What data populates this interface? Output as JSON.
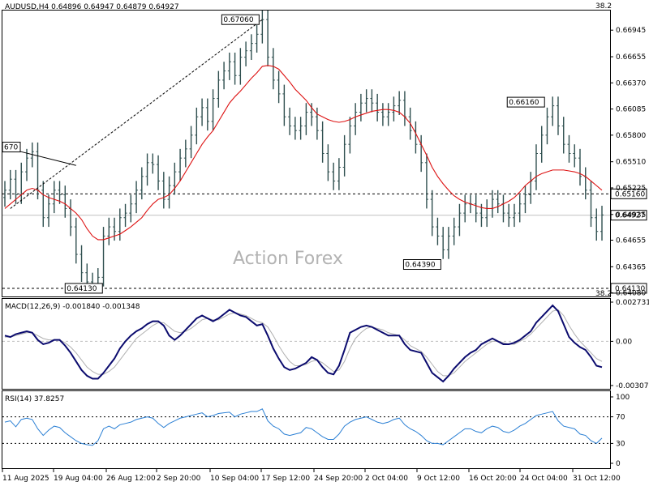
{
  "chart_data": [
    {
      "type": "candlestick",
      "symbol_header": "AUDUSD,H4  0.64896 0.64947 0.64879 0.64927",
      "watermark": "Action Forex",
      "y_ticks": [
        "0.66945",
        "0.66655",
        "0.66370",
        "0.66085",
        "0.65800",
        "0.65510",
        "0.65225",
        "0.64935",
        "0.64655",
        "0.64365",
        "0.64080"
      ],
      "ylim": [
        0.6405,
        0.6715
      ],
      "current_price": 0.64927,
      "current_price_label": "0.64927",
      "level_line": 0.6516,
      "level_line_label": "0.65160",
      "support_line": 0.6413,
      "support_line_label": "0.64130",
      "fib_label_top": "38.2",
      "fib_label_bottom": "38.2",
      "annotations": [
        {
          "label": "0.67060",
          "value": 0.6706,
          "at": "Sep 17 high"
        },
        {
          "label": "0.66160",
          "value": 0.6616,
          "at": "Oct 28 high"
        },
        {
          "label": "0.64390",
          "value": 0.6439,
          "at": "Oct 14 low"
        },
        {
          "label": "0.64130",
          "value": 0.6413,
          "at": "Aug 21 low"
        },
        {
          "label": "670",
          "value": 0.6567,
          "at": "Aug 14 high"
        }
      ],
      "series_close": [
        0.652,
        0.6532,
        0.6515,
        0.654,
        0.6555,
        0.6562,
        0.652,
        0.649,
        0.6505,
        0.652,
        0.6515,
        0.65,
        0.648,
        0.645,
        0.643,
        0.642,
        0.6418,
        0.6425,
        0.647,
        0.648,
        0.6475,
        0.649,
        0.6495,
        0.6505,
        0.652,
        0.6535,
        0.655,
        0.6548,
        0.653,
        0.651,
        0.6525,
        0.654,
        0.6555,
        0.6565,
        0.658,
        0.66,
        0.661,
        0.6595,
        0.662,
        0.664,
        0.665,
        0.666,
        0.6645,
        0.6665,
        0.6672,
        0.668,
        0.669,
        0.6706,
        0.6665,
        0.664,
        0.6625,
        0.66,
        0.659,
        0.6585,
        0.659,
        0.6605,
        0.66,
        0.6585,
        0.656,
        0.654,
        0.653,
        0.6545,
        0.657,
        0.659,
        0.6605,
        0.6615,
        0.662,
        0.6615,
        0.6605,
        0.66,
        0.6605,
        0.6612,
        0.6618,
        0.66,
        0.6585,
        0.657,
        0.655,
        0.651,
        0.648,
        0.647,
        0.6455,
        0.647,
        0.648,
        0.6495,
        0.6505,
        0.6505,
        0.6495,
        0.649,
        0.65,
        0.651,
        0.6505,
        0.6495,
        0.649,
        0.6495,
        0.6505,
        0.6515,
        0.653,
        0.656,
        0.658,
        0.66,
        0.6612,
        0.659,
        0.657,
        0.656,
        0.6555,
        0.6535,
        0.652,
        0.649,
        0.6475,
        0.6493
      ],
      "series_ma": [
        0.65,
        0.6505,
        0.651,
        0.6515,
        0.652,
        0.6522,
        0.652,
        0.6515,
        0.6512,
        0.651,
        0.6508,
        0.6505,
        0.65,
        0.6495,
        0.6488,
        0.6478,
        0.647,
        0.6466,
        0.6466,
        0.6468,
        0.647,
        0.6472,
        0.6476,
        0.648,
        0.6485,
        0.649,
        0.6498,
        0.6505,
        0.651,
        0.6512,
        0.6515,
        0.6522,
        0.653,
        0.654,
        0.655,
        0.656,
        0.657,
        0.6578,
        0.6585,
        0.6595,
        0.6605,
        0.6615,
        0.6622,
        0.6628,
        0.6635,
        0.6642,
        0.6648,
        0.6655,
        0.6656,
        0.6655,
        0.6652,
        0.6645,
        0.6638,
        0.663,
        0.6624,
        0.6618,
        0.661,
        0.6603,
        0.66,
        0.6597,
        0.6595,
        0.6594,
        0.6595,
        0.6597,
        0.66,
        0.6602,
        0.6604,
        0.6606,
        0.6607,
        0.6608,
        0.6608,
        0.6607,
        0.6605,
        0.66,
        0.6593,
        0.6582,
        0.657,
        0.6558,
        0.6545,
        0.6535,
        0.6527,
        0.652,
        0.6514,
        0.651,
        0.6507,
        0.6505,
        0.6503,
        0.6501,
        0.65,
        0.65,
        0.6502,
        0.6505,
        0.6508,
        0.6512,
        0.6518,
        0.6525,
        0.653,
        0.6535,
        0.6538,
        0.654,
        0.6542,
        0.6542,
        0.6542,
        0.6541,
        0.654,
        0.6538,
        0.6535,
        0.653,
        0.6525,
        0.652
      ],
      "x_labels": [
        "11 Aug 2025",
        "19 Aug 04:00",
        "26 Aug 12:00",
        "2 Sep 20:00",
        "10 Sep 04:00",
        "17 Sep 12:00",
        "24 Sep 20:00",
        "2 Oct 04:00",
        "9 Oct 12:00",
        "16 Oct 20:00",
        "24 Oct 04:00",
        "31 Oct 12:00"
      ]
    },
    {
      "type": "macd",
      "label": "MACD(12,26,9) -0.001840 -0.001348",
      "y_ticks": [
        "0.002731",
        "0.00",
        "-0.003077"
      ],
      "ylim": [
        -0.00325,
        0.0029
      ],
      "macd": [
        0.0004,
        0.0003,
        0.0005,
        0.0006,
        0.0007,
        0.0006,
        0.0001,
        -0.0002,
        -0.0001,
        0.0001,
        0.0001,
        -0.0003,
        -0.0008,
        -0.0014,
        -0.002,
        -0.0024,
        -0.0026,
        -0.0026,
        -0.0022,
        -0.0017,
        -0.0012,
        -0.0005,
        0.0,
        0.0004,
        0.0007,
        0.0009,
        0.0012,
        0.0014,
        0.0014,
        0.0011,
        0.0004,
        0.0001,
        0.0004,
        0.0008,
        0.0012,
        0.0016,
        0.0018,
        0.0016,
        0.0014,
        0.0016,
        0.0019,
        0.0022,
        0.002,
        0.0018,
        0.0017,
        0.0014,
        0.0011,
        0.0012,
        0.0004,
        -0.0005,
        -0.0012,
        -0.0018,
        -0.002,
        -0.0019,
        -0.0017,
        -0.0015,
        -0.0011,
        -0.0013,
        -0.0018,
        -0.0022,
        -0.0023,
        -0.0017,
        -0.0006,
        0.0006,
        0.0008,
        0.001,
        0.0011,
        0.001,
        0.0008,
        0.0006,
        0.0004,
        0.0004,
        0.0004,
        -0.0002,
        -0.0006,
        -0.0007,
        -0.0008,
        -0.0015,
        -0.0022,
        -0.0025,
        -0.0028,
        -0.0024,
        -0.0019,
        -0.0015,
        -0.0011,
        -0.0008,
        -0.0006,
        -0.0002,
        0.0,
        0.0002,
        0.0,
        -0.0002,
        -0.0002,
        -0.0001,
        0.0001,
        0.0004,
        0.0007,
        0.0013,
        0.0017,
        0.0021,
        0.0025,
        0.0021,
        0.0012,
        0.0003,
        -0.0001,
        -0.0004,
        -0.0006,
        -0.0011,
        -0.0017,
        -0.0018
      ],
      "signal": [
        0.0003,
        0.0003,
        0.0004,
        0.0005,
        0.0006,
        0.0006,
        0.0004,
        0.0002,
        0.0001,
        0.0001,
        0.0001,
        -0.0001,
        -0.0004,
        -0.0008,
        -0.0013,
        -0.0018,
        -0.0021,
        -0.0023,
        -0.0023,
        -0.0021,
        -0.0018,
        -0.0013,
        -0.0008,
        -0.0003,
        0.0002,
        0.0005,
        0.0008,
        0.0011,
        0.0013,
        0.0013,
        0.001,
        0.0007,
        0.0006,
        0.0007,
        0.0009,
        0.0012,
        0.0015,
        0.0016,
        0.0015,
        0.0015,
        0.0017,
        0.0019,
        0.002,
        0.0019,
        0.0018,
        0.0016,
        0.0014,
        0.0013,
        0.001,
        0.0004,
        -0.0003,
        -0.0009,
        -0.0014,
        -0.0017,
        -0.0017,
        -0.0016,
        -0.0014,
        -0.0013,
        -0.0015,
        -0.0018,
        -0.0021,
        -0.002,
        -0.0014,
        -0.0005,
        0.0002,
        0.0006,
        0.0009,
        0.001,
        0.0009,
        0.0008,
        0.0006,
        0.0005,
        0.0004,
        0.0001,
        -0.0003,
        -0.0005,
        -0.0007,
        -0.0011,
        -0.0016,
        -0.0021,
        -0.0024,
        -0.0024,
        -0.0022,
        -0.0018,
        -0.0014,
        -0.0011,
        -0.0008,
        -0.0005,
        -0.0002,
        0.0,
        0.0,
        -0.0001,
        -0.0002,
        -0.0002,
        0.0,
        0.0002,
        0.0005,
        0.0009,
        0.0013,
        0.0017,
        0.0021,
        0.0022,
        0.0018,
        0.0011,
        0.0005,
        0.0,
        -0.0004,
        -0.0008,
        -0.0012,
        -0.0014
      ]
    },
    {
      "type": "rsi",
      "label": "RSI(14) 37.8257",
      "y_ticks": [
        "100",
        "70",
        "30",
        "0"
      ],
      "ylim": [
        0,
        100
      ],
      "values": [
        62,
        64,
        55,
        66,
        68,
        66,
        52,
        42,
        50,
        56,
        54,
        46,
        40,
        34,
        30,
        28,
        27,
        34,
        52,
        56,
        52,
        58,
        60,
        62,
        66,
        68,
        70,
        68,
        60,
        54,
        60,
        64,
        68,
        70,
        72,
        74,
        76,
        70,
        72,
        75,
        76,
        77,
        70,
        74,
        76,
        78,
        78,
        82,
        64,
        56,
        52,
        44,
        42,
        44,
        46,
        54,
        52,
        46,
        40,
        36,
        36,
        44,
        56,
        62,
        66,
        68,
        70,
        66,
        62,
        60,
        62,
        66,
        68,
        58,
        52,
        48,
        42,
        34,
        30,
        30,
        28,
        34,
        40,
        46,
        52,
        52,
        48,
        46,
        52,
        56,
        54,
        48,
        46,
        50,
        56,
        60,
        66,
        72,
        74,
        76,
        78,
        64,
        56,
        54,
        52,
        44,
        42,
        34,
        30,
        38
      ]
    }
  ]
}
